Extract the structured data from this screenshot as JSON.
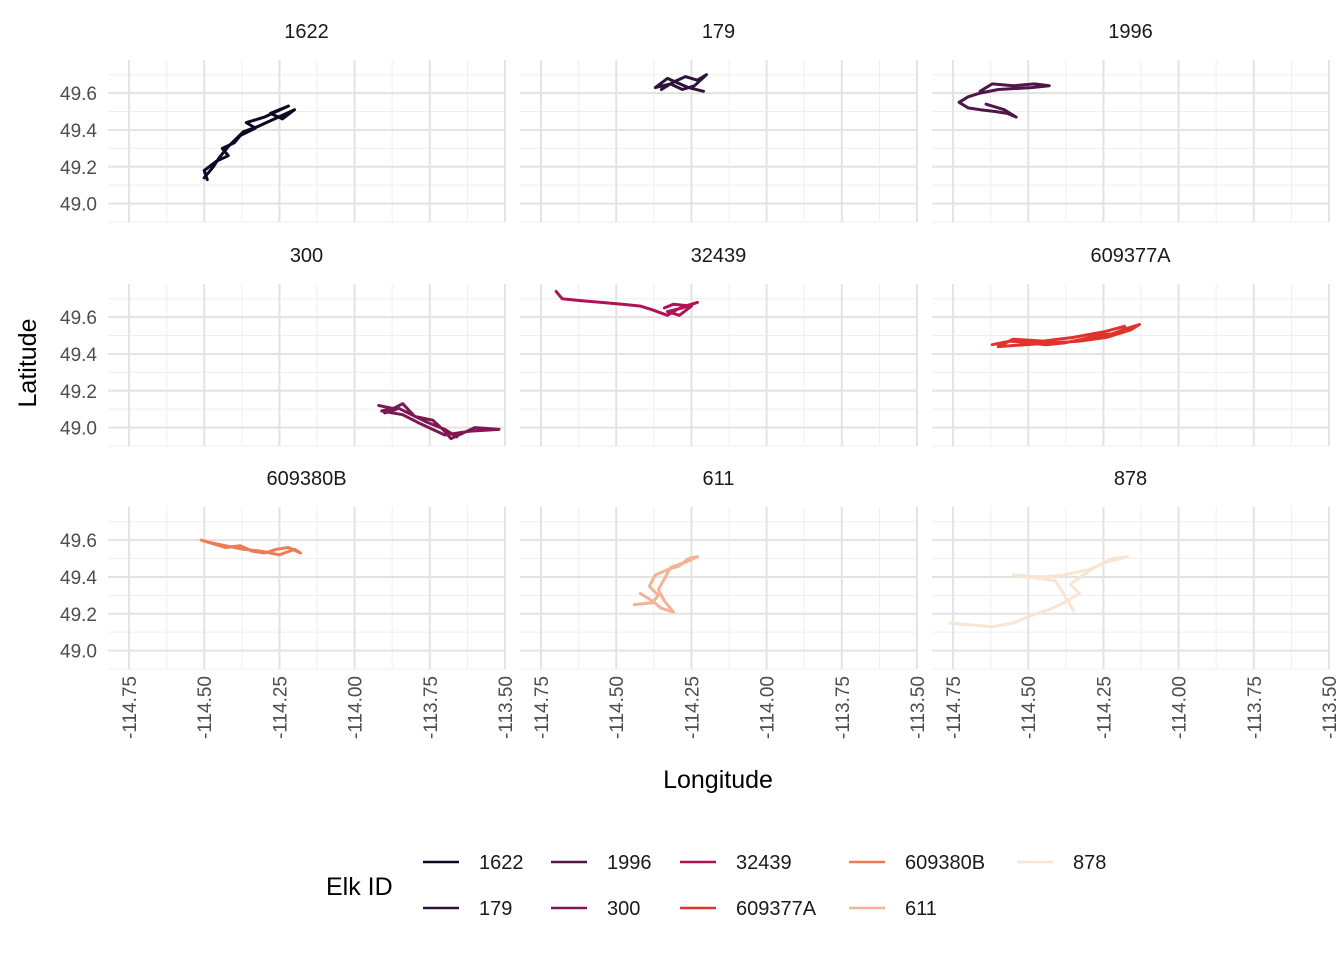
{
  "chart_data": {
    "type": "line",
    "facet_layout": "3x3 grid of small multiples, one panel per elk",
    "xlabel": "Longitude",
    "ylabel": "Latitude",
    "xlim": [
      -114.82,
      -113.5
    ],
    "ylim": [
      48.9,
      49.78
    ],
    "x_ticks": [
      -114.75,
      -114.5,
      -114.25,
      -114.0,
      -113.75,
      -113.5
    ],
    "x_tick_labels": [
      "-114.75",
      "-114.50",
      "-114.25",
      "-114.00",
      "-113.75",
      "-113.50"
    ],
    "y_ticks": [
      49.0,
      49.2,
      49.4,
      49.6
    ],
    "y_tick_labels": [
      "49.0",
      "49.2",
      "49.4",
      "49.6"
    ],
    "grid": true,
    "legend_title": "Elk ID",
    "legend_position": "bottom",
    "series": [
      {
        "name": "1622",
        "color": "#0b0924",
        "x": [
          -114.49,
          -114.5,
          -114.46,
          -114.42,
          -114.44,
          -114.4,
          -114.38,
          -114.33,
          -114.36,
          -114.3,
          -114.26,
          -114.22,
          -114.28,
          -114.24,
          -114.2,
          -114.32,
          -114.37,
          -114.42,
          -114.45,
          -114.47,
          -114.5
        ],
        "y": [
          49.13,
          49.18,
          49.23,
          49.26,
          49.3,
          49.33,
          49.37,
          49.41,
          49.44,
          49.47,
          49.5,
          49.53,
          49.49,
          49.46,
          49.51,
          49.42,
          49.39,
          49.31,
          49.25,
          49.2,
          49.14
        ]
      },
      {
        "name": "179",
        "color": "#2d1339",
        "x": [
          -114.35,
          -114.31,
          -114.27,
          -114.23,
          -114.2,
          -114.24,
          -114.28,
          -114.32,
          -114.37,
          -114.33,
          -114.26,
          -114.21
        ],
        "y": [
          49.62,
          49.66,
          49.69,
          49.67,
          49.7,
          49.64,
          49.62,
          49.65,
          49.63,
          49.68,
          49.63,
          49.61
        ]
      },
      {
        "name": "1996",
        "color": "#4f1648",
        "x": [
          -114.66,
          -114.62,
          -114.55,
          -114.48,
          -114.43,
          -114.49,
          -114.6,
          -114.66,
          -114.7,
          -114.73,
          -114.7,
          -114.66,
          -114.61,
          -114.57,
          -114.54,
          -114.58,
          -114.64
        ],
        "y": [
          49.61,
          49.65,
          49.64,
          49.65,
          49.64,
          49.63,
          49.62,
          49.6,
          49.58,
          49.55,
          49.52,
          49.51,
          49.5,
          49.49,
          49.47,
          49.51,
          49.54
        ]
      },
      {
        "name": "300",
        "color": "#7d1853",
        "x": [
          -113.92,
          -113.86,
          -113.9,
          -113.84,
          -113.8,
          -113.74,
          -113.7,
          -113.68,
          -113.64,
          -113.6,
          -113.52,
          -113.62,
          -113.7,
          -113.78,
          -113.84,
          -113.91,
          -113.86,
          -113.76,
          -113.7,
          -113.66
        ],
        "y": [
          49.12,
          49.1,
          49.08,
          49.13,
          49.06,
          49.04,
          48.98,
          48.94,
          48.97,
          49.0,
          48.99,
          48.98,
          48.96,
          49.02,
          49.07,
          49.09,
          49.11,
          49.03,
          48.99,
          48.95
        ]
      },
      {
        "name": "32439",
        "color": "#b01256",
        "x": [
          -114.7,
          -114.68,
          -114.62,
          -114.55,
          -114.48,
          -114.42,
          -114.38,
          -114.33,
          -114.3,
          -114.27,
          -114.23,
          -114.28,
          -114.33,
          -114.29,
          -114.25,
          -114.31,
          -114.34
        ],
        "y": [
          49.74,
          49.7,
          49.69,
          49.68,
          49.67,
          49.66,
          49.64,
          49.61,
          49.64,
          49.66,
          49.68,
          49.65,
          49.63,
          49.61,
          49.66,
          49.67,
          49.65
        ]
      },
      {
        "name": "609377A",
        "color": "#e0332e",
        "x": [
          -114.62,
          -114.56,
          -114.5,
          -114.44,
          -114.38,
          -114.32,
          -114.27,
          -114.22,
          -114.17,
          -114.13,
          -114.16,
          -114.24,
          -114.33,
          -114.42,
          -114.51,
          -114.6,
          -114.55,
          -114.45,
          -114.35,
          -114.25,
          -114.18
        ],
        "y": [
          49.45,
          49.47,
          49.46,
          49.45,
          49.46,
          49.48,
          49.5,
          49.51,
          49.54,
          49.56,
          49.53,
          49.49,
          49.47,
          49.46,
          49.45,
          49.44,
          49.48,
          49.47,
          49.49,
          49.52,
          49.55
        ]
      },
      {
        "name": "609380B",
        "color": "#ee7a57",
        "x": [
          -114.51,
          -114.47,
          -114.43,
          -114.38,
          -114.34,
          -114.3,
          -114.26,
          -114.22,
          -114.18,
          -114.2,
          -114.25,
          -114.31,
          -114.37,
          -114.43,
          -114.49
        ],
        "y": [
          49.6,
          49.58,
          49.56,
          49.57,
          49.54,
          49.53,
          49.55,
          49.56,
          49.53,
          49.55,
          49.52,
          49.54,
          49.55,
          49.57,
          49.59
        ]
      },
      {
        "name": "611",
        "color": "#f3b394",
        "x": [
          -114.44,
          -114.38,
          -114.36,
          -114.39,
          -114.37,
          -114.33,
          -114.29,
          -114.26,
          -114.23,
          -114.27,
          -114.32,
          -114.34,
          -114.36,
          -114.34,
          -114.31,
          -114.35,
          -114.38,
          -114.42
        ],
        "y": [
          49.25,
          49.26,
          49.3,
          49.35,
          49.41,
          49.44,
          49.46,
          49.5,
          49.51,
          49.48,
          49.45,
          49.39,
          49.33,
          49.27,
          49.21,
          49.23,
          49.27,
          49.31
        ]
      },
      {
        "name": "878",
        "color": "#f8e5d3",
        "x": [
          -114.76,
          -114.7,
          -114.62,
          -114.55,
          -114.49,
          -114.42,
          -114.37,
          -114.33,
          -114.36,
          -114.31,
          -114.27,
          -114.22,
          -114.17,
          -114.24,
          -114.3,
          -114.38,
          -114.46,
          -114.55,
          -114.41,
          -114.35
        ],
        "y": [
          49.15,
          49.14,
          49.13,
          49.15,
          49.19,
          49.23,
          49.27,
          49.31,
          49.36,
          49.42,
          49.46,
          49.5,
          49.51,
          49.48,
          49.44,
          49.41,
          49.4,
          49.41,
          49.38,
          49.22
        ]
      }
    ]
  }
}
